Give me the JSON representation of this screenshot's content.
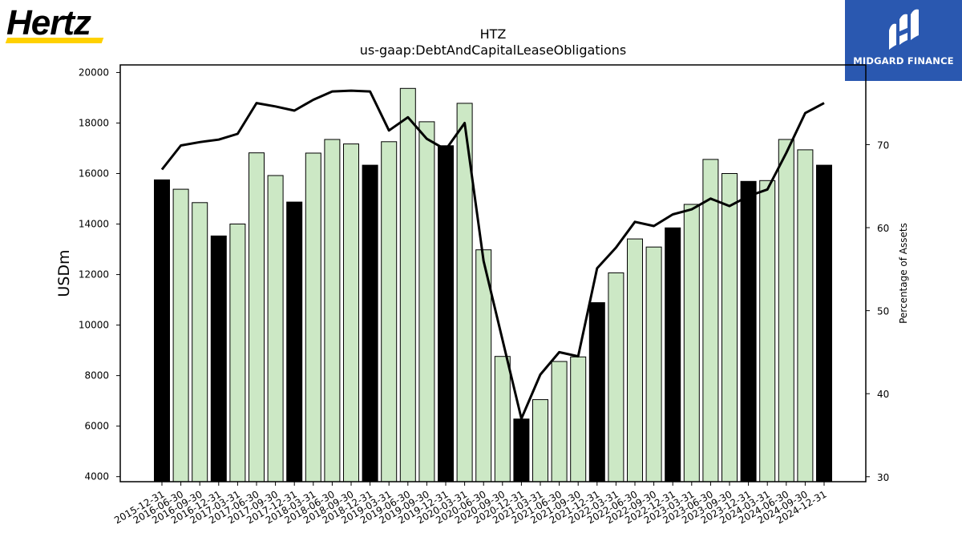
{
  "brand": {
    "left_logo_text": "Hertz",
    "right_logo_text": "MIDGARD FINANCE"
  },
  "chart_data": {
    "type": "bar",
    "title": "HTZ",
    "subtitle": "us-gaap:DebtAndCapitalLeaseObligations",
    "xlabel": "",
    "ylabel": "USDm",
    "y2label": "Percentage of Assets",
    "ylim": [
      3800,
      20300
    ],
    "y2lim": [
      29.4,
      79.6
    ],
    "yticks": [
      4000,
      6000,
      8000,
      10000,
      12000,
      14000,
      16000,
      18000,
      20000
    ],
    "y2ticks": [
      30,
      40,
      50,
      60,
      70
    ],
    "grid": false,
    "colors": {
      "annual_bar": "#000000",
      "quarter_bar": "#cce8c5",
      "line": "#000000"
    },
    "categories": [
      "2015-12-31",
      "2016-06-30",
      "2016-09-30",
      "2016-12-31",
      "2017-03-31",
      "2017-06-30",
      "2017-09-30",
      "2017-12-31",
      "2018-03-31",
      "2018-06-30",
      "2018-09-30",
      "2018-12-31",
      "2019-03-31",
      "2019-06-30",
      "2019-09-30",
      "2019-12-31",
      "2020-03-31",
      "2020-06-30",
      "2020-09-30",
      "2020-12-31",
      "2021-03-31",
      "2021-06-30",
      "2021-09-30",
      "2021-12-31",
      "2022-03-31",
      "2022-06-30",
      "2022-09-30",
      "2022-12-31",
      "2023-03-31",
      "2023-06-30",
      "2023-09-30",
      "2023-12-31",
      "2024-03-31",
      "2024-06-30",
      "2024-09-30",
      "2024-12-31"
    ],
    "series": [
      {
        "kind": "bar",
        "values": [
          15750,
          15380,
          14850,
          13530,
          14000,
          16820,
          15920,
          14870,
          16810,
          17350,
          17170,
          16330,
          17260,
          19370,
          18050,
          17100,
          18780,
          12980,
          8760,
          6280,
          7050,
          8560,
          8740,
          10890,
          12070,
          13410,
          13090,
          13850,
          14780,
          16560,
          16000,
          15690,
          15720,
          17350,
          16940,
          16330
        ],
        "annual": [
          true,
          false,
          false,
          true,
          false,
          false,
          false,
          true,
          false,
          false,
          false,
          true,
          false,
          false,
          false,
          true,
          false,
          false,
          false,
          true,
          false,
          false,
          false,
          true,
          false,
          false,
          false,
          true,
          false,
          false,
          false,
          true,
          false,
          false,
          false,
          true
        ]
      },
      {
        "kind": "line",
        "axis": "right",
        "values": [
          67.0,
          69.9,
          70.3,
          70.6,
          71.3,
          75.0,
          74.6,
          74.1,
          75.4,
          76.4,
          76.5,
          76.4,
          71.7,
          73.3,
          70.7,
          69.4,
          72.6,
          56.0,
          46.5,
          37.0,
          42.3,
          45.0,
          44.5,
          55.1,
          57.6,
          60.7,
          60.2,
          61.6,
          62.2,
          63.5,
          62.6,
          63.8,
          64.6,
          69.0,
          73.8,
          75.0
        ]
      }
    ]
  }
}
